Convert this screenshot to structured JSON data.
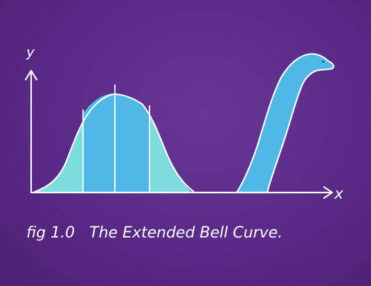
{
  "figure": {
    "caption": "fig 1.0   The Extended Bell Curve.",
    "axis_labels": {
      "y": "y",
      "x": "x"
    }
  },
  "colors": {
    "background": "#5a2a86",
    "curve_light": "#7fdcdc",
    "curve_mid": "#4fb8e6",
    "outline": "#ffffff"
  },
  "icons": {
    "sea_creature": "loch-ness-monster-neck-icon"
  }
}
